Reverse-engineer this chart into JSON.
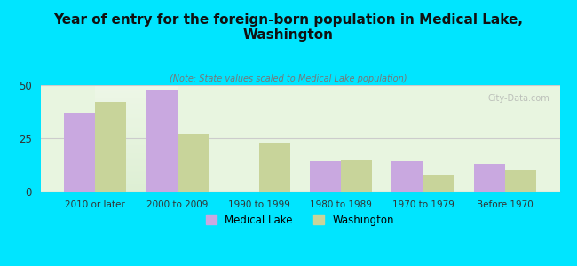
{
  "title": "Year of entry for the foreign-born population in Medical Lake,\nWashington",
  "subtitle": "(Note: State values scaled to Medical Lake population)",
  "categories": [
    "2010 or later",
    "2000 to 2009",
    "1990 to 1999",
    "1980 to 1989",
    "1970 to 1979",
    "Before 1970"
  ],
  "medical_lake": [
    37,
    48,
    0,
    14,
    14,
    13
  ],
  "washington": [
    42,
    27,
    23,
    15,
    8,
    10
  ],
  "bar_color_ml": "#c9a8e0",
  "bar_color_wa": "#c8d49a",
  "background_outer": "#00e5ff",
  "background_inner": "#e8f5e0",
  "ylim": [
    0,
    50
  ],
  "yticks": [
    0,
    25,
    50
  ],
  "bar_width": 0.38,
  "legend_labels": [
    "Medical Lake",
    "Washington"
  ],
  "watermark": "City-Data.com"
}
